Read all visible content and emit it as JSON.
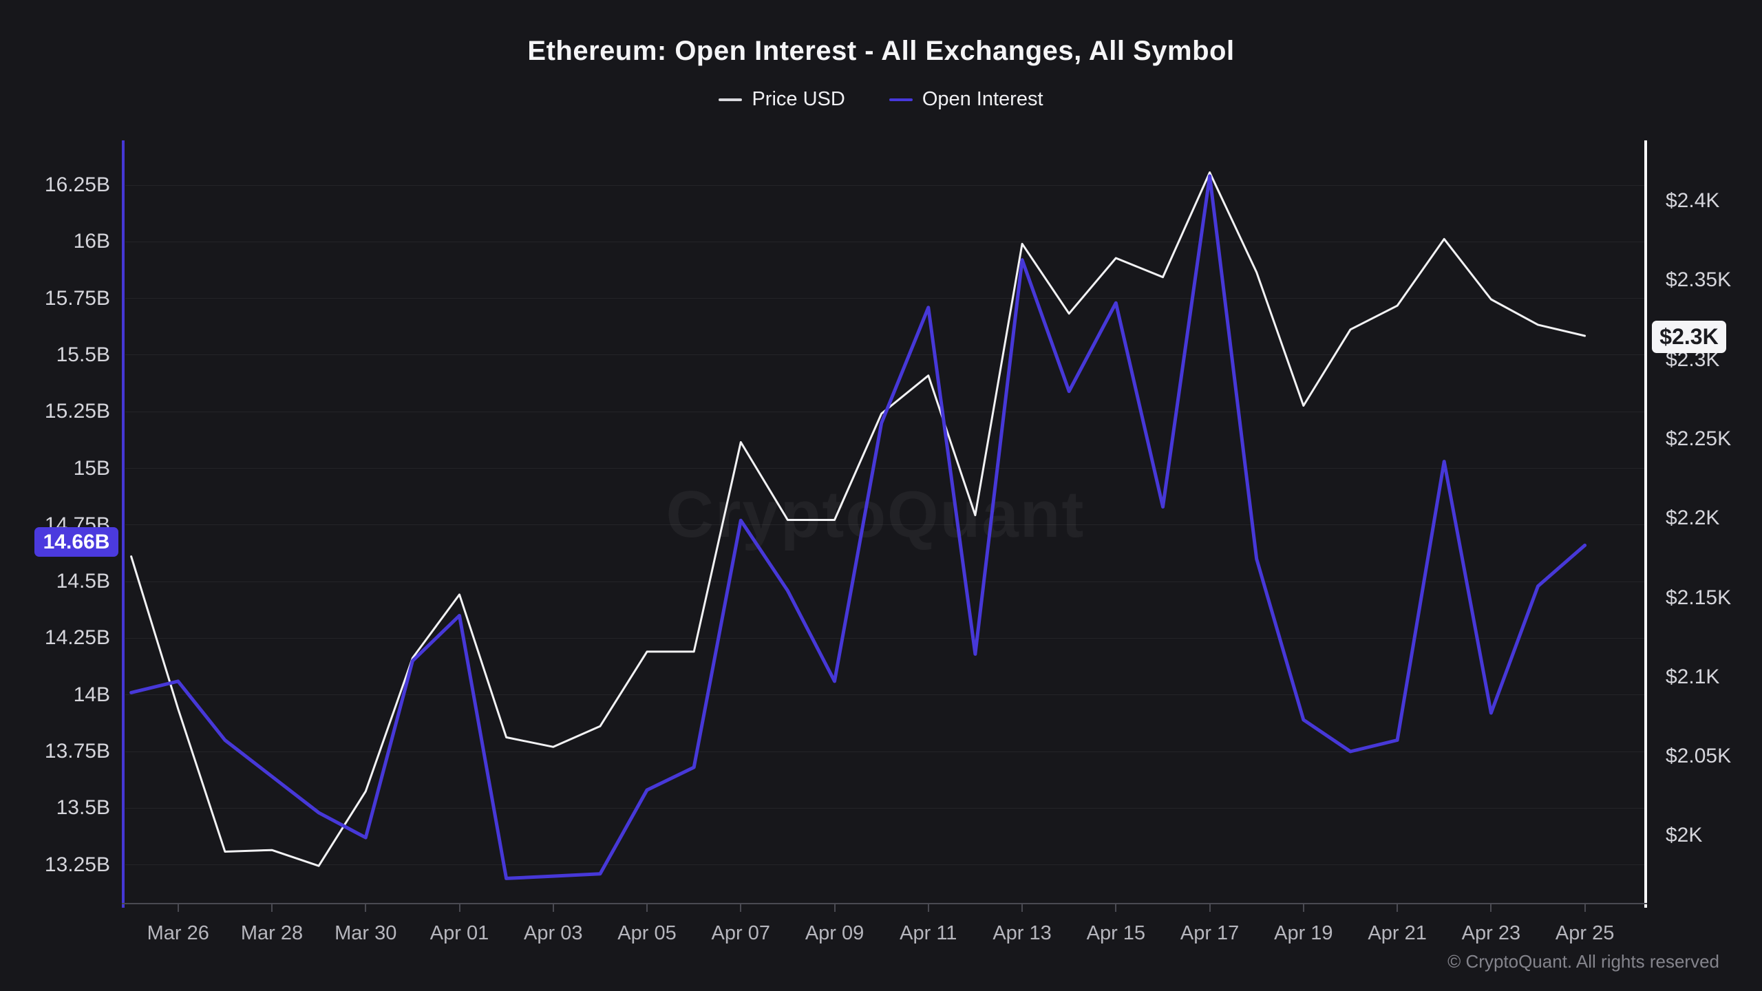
{
  "header": {
    "title": "Ethereum: Open Interest - All Exchanges, All Symbol",
    "legend": [
      {
        "label": "Price USD",
        "color": "#d9d9de"
      },
      {
        "label": "Open Interest",
        "color": "#4738db"
      }
    ]
  },
  "watermark": "CryptoQuant",
  "footer": "© CryptoQuant. All rights reserved",
  "badges": {
    "left_current_open_interest": "14.66B",
    "right_current_price": "$2.3K"
  },
  "chart_data": {
    "type": "line",
    "title": "Ethereum: Open Interest - All Exchanges, All Symbol",
    "x": [
      "Mar 25",
      "Mar 26",
      "Mar 27",
      "Mar 28",
      "Mar 29",
      "Mar 30",
      "Mar 31",
      "Apr 01",
      "Apr 02",
      "Apr 03",
      "Apr 04",
      "Apr 05",
      "Apr 06",
      "Apr 07",
      "Apr 08",
      "Apr 09",
      "Apr 10",
      "Apr 11",
      "Apr 12",
      "Apr 13",
      "Apr 14",
      "Apr 15",
      "Apr 16",
      "Apr 17",
      "Apr 18",
      "Apr 19",
      "Apr 20",
      "Apr 21",
      "Apr 22",
      "Apr 23",
      "Apr 24",
      "Apr 25"
    ],
    "x_tick_labels": [
      "Mar 26",
      "Mar 28",
      "Mar 30",
      "Apr 01",
      "Apr 03",
      "Apr 05",
      "Apr 07",
      "Apr 09",
      "Apr 11",
      "Apr 13",
      "Apr 15",
      "Apr 17",
      "Apr 19",
      "Apr 21",
      "Apr 23",
      "Apr 25"
    ],
    "series": [
      {
        "name": "Price USD",
        "axis": "right",
        "color": "#f2f2f4",
        "unit": "K USD",
        "values": [
          2.176,
          2.08,
          1.99,
          1.991,
          1.981,
          2.028,
          2.112,
          2.152,
          2.062,
          2.056,
          2.069,
          2.116,
          2.116,
          2.248,
          2.199,
          2.199,
          2.266,
          2.29,
          2.202,
          2.373,
          2.329,
          2.364,
          2.352,
          2.418,
          2.355,
          2.271,
          2.319,
          2.334,
          2.376,
          2.338,
          2.322,
          2.315
        ]
      },
      {
        "name": "Open Interest",
        "axis": "left",
        "color": "#4738d8",
        "unit": "B USD",
        "values": [
          14.01,
          14.06,
          13.8,
          13.64,
          13.48,
          13.37,
          14.15,
          14.35,
          13.19,
          13.2,
          13.21,
          13.58,
          13.68,
          14.77,
          14.46,
          14.06,
          15.2,
          15.71,
          14.18,
          15.92,
          15.34,
          15.73,
          14.83,
          16.29,
          14.6,
          13.89,
          13.75,
          13.8,
          15.03,
          13.92,
          14.48,
          14.66
        ]
      }
    ],
    "left_axis": {
      "tick_labels": [
        "16.25B",
        "16B",
        "15.75B",
        "15.5B",
        "15.25B",
        "15B",
        "14.75B",
        "14.5B",
        "14.25B",
        "14B",
        "13.75B",
        "13.5B",
        "13.25B"
      ],
      "tick_values": [
        16.25,
        16,
        15.75,
        15.5,
        15.25,
        15,
        14.75,
        14.5,
        14.25,
        14,
        13.75,
        13.5,
        13.25
      ],
      "current_value_badge": "14.66B"
    },
    "right_axis": {
      "tick_labels": [
        "$2.4K",
        "$2.35K",
        "$2.3K",
        "$2.25K",
        "$2.2K",
        "$2.15K",
        "$2.1K",
        "$2.05K",
        "$2K"
      ],
      "tick_values": [
        2.4,
        2.35,
        2.3,
        2.25,
        2.2,
        2.15,
        2.1,
        2.05,
        2.0
      ],
      "current_value_badge": "$2.3K"
    },
    "grid": true,
    "legend_position": "top-center"
  }
}
